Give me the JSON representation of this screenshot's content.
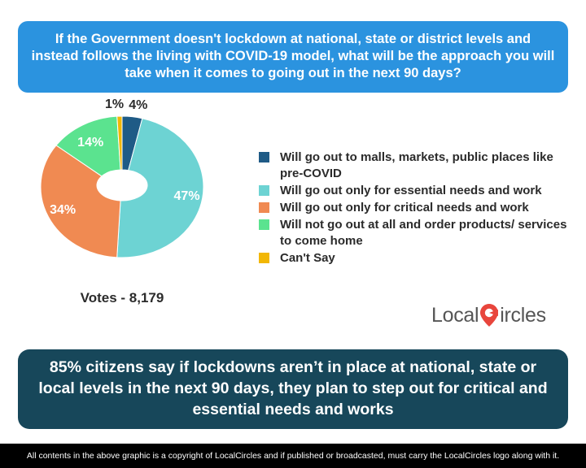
{
  "question": "If the Government doesn't lockdown at national, state or district levels and instead follows the living with COVID-19 model, what will be the approach you will take when it comes to going out in the next 90 days?",
  "votes_label": "Votes - 8,179",
  "finding": "85% citizens say if lockdowns aren’t in place at national, state or local levels in the next 90 days, they plan to step out for critical and essential needs and works",
  "footer": "All contents in the above graphic is a copyright of LocalCircles and if published or broadcasted, must carry the LocalCircles logo along with it.",
  "logo": {
    "part1": "Local",
    "part2": "ircles",
    "icon": "map-pin-c-icon"
  },
  "chart_data": {
    "type": "pie",
    "donut": true,
    "title": "",
    "legend_position": "right",
    "slices": [
      {
        "label": "Will go out to malls, markets, public places like pre-COVID",
        "value": 4,
        "value_label": "4%",
        "color": "#1f5b86"
      },
      {
        "label": "Will go out only for essential needs and work",
        "value": 47,
        "value_label": "47%",
        "color": "#6dd3d3"
      },
      {
        "label": "Will go out only for critical needs and work",
        "value": 34,
        "value_label": "34%",
        "color": "#f08a52"
      },
      {
        "label": "Will not go out at all and order products/ services to come home",
        "value": 14,
        "value_label": "14%",
        "color": "#5be38f"
      },
      {
        "label": "Can't Say",
        "value": 1,
        "value_label": "1%",
        "color": "#f2b705"
      }
    ]
  }
}
